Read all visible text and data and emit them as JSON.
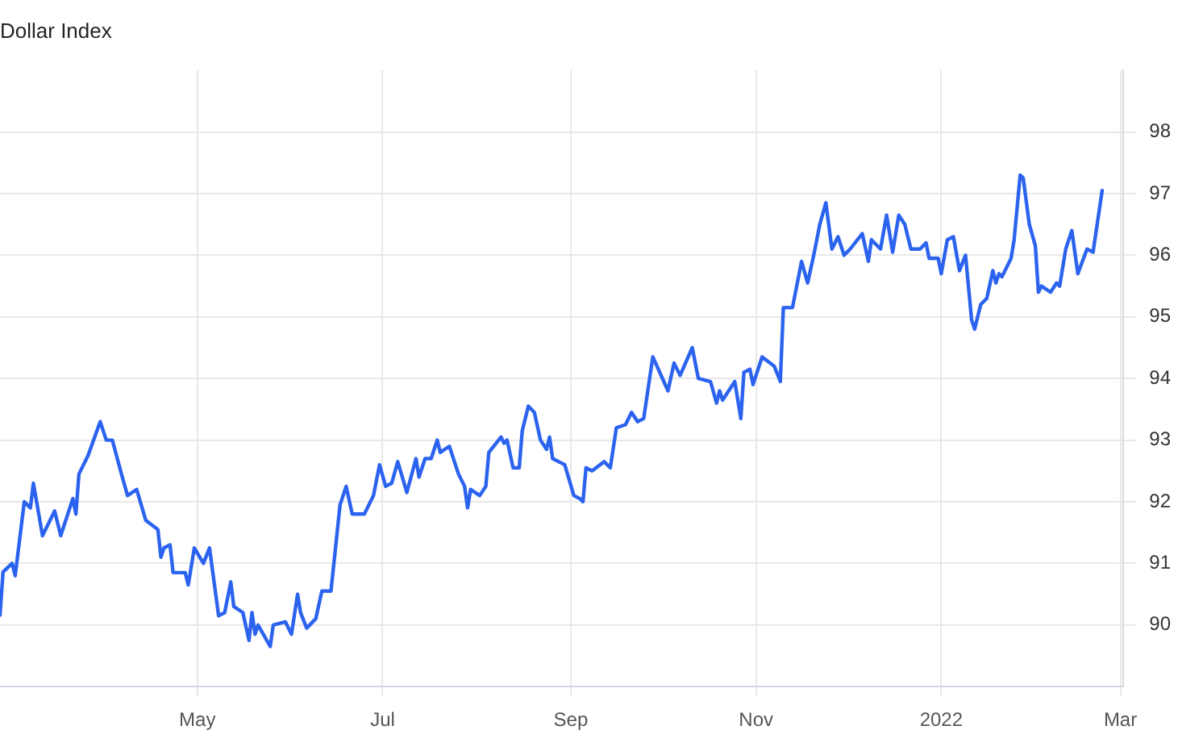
{
  "chart_data": {
    "type": "line",
    "title": "Dollar Index",
    "x": [
      "2021-02-25",
      "2021-02-26",
      "2021-03-01",
      "2021-03-02",
      "2021-03-05",
      "2021-03-07",
      "2021-03-08",
      "2021-03-11",
      "2021-03-15",
      "2021-03-17",
      "2021-03-21",
      "2021-03-22",
      "2021-03-23",
      "2021-03-26",
      "2021-03-30",
      "2021-04-01",
      "2021-04-03",
      "2021-04-06",
      "2021-04-08",
      "2021-04-11",
      "2021-04-14",
      "2021-04-18",
      "2021-04-19",
      "2021-04-20",
      "2021-04-22",
      "2021-04-23",
      "2021-04-27",
      "2021-04-28",
      "2021-04-30",
      "2021-05-03",
      "2021-05-05",
      "2021-05-08",
      "2021-05-10",
      "2021-05-12",
      "2021-05-13",
      "2021-05-16",
      "2021-05-18",
      "2021-05-19",
      "2021-05-20",
      "2021-05-21",
      "2021-05-25",
      "2021-05-26",
      "2021-05-30",
      "2021-06-01",
      "2021-06-03",
      "2021-06-04",
      "2021-06-06",
      "2021-06-09",
      "2021-06-11",
      "2021-06-14",
      "2021-06-17",
      "2021-06-19",
      "2021-06-21",
      "2021-06-25",
      "2021-06-28",
      "2021-06-30",
      "2021-07-02",
      "2021-07-04",
      "2021-07-06",
      "2021-07-09",
      "2021-07-12",
      "2021-07-13",
      "2021-07-15",
      "2021-07-17",
      "2021-07-19",
      "2021-07-20",
      "2021-07-23",
      "2021-07-26",
      "2021-07-28",
      "2021-07-29",
      "2021-07-30",
      "2021-08-02",
      "2021-08-04",
      "2021-08-05",
      "2021-08-09",
      "2021-08-10",
      "2021-08-11",
      "2021-08-13",
      "2021-08-15",
      "2021-08-16",
      "2021-08-18",
      "2021-08-20",
      "2021-08-22",
      "2021-08-24",
      "2021-08-25",
      "2021-08-26",
      "2021-08-30",
      "2021-09-02",
      "2021-09-04",
      "2021-09-05",
      "2021-09-06",
      "2021-09-08",
      "2021-09-12",
      "2021-09-14",
      "2021-09-16",
      "2021-09-19",
      "2021-09-21",
      "2021-09-23",
      "2021-09-25",
      "2021-09-28",
      "2021-10-03",
      "2021-10-05",
      "2021-10-07",
      "2021-10-11",
      "2021-10-13",
      "2021-10-17",
      "2021-10-19",
      "2021-10-20",
      "2021-10-21",
      "2021-10-25",
      "2021-10-27",
      "2021-10-28",
      "2021-10-30",
      "2021-10-31",
      "2021-11-03",
      "2021-11-07",
      "2021-11-09",
      "2021-11-10",
      "2021-11-13",
      "2021-11-16",
      "2021-11-18",
      "2021-11-20",
      "2021-11-22",
      "2021-11-24",
      "2021-11-26",
      "2021-11-28",
      "2021-11-30",
      "2021-12-02",
      "2021-12-06",
      "2021-12-08",
      "2021-12-09",
      "2021-12-12",
      "2021-12-14",
      "2021-12-16",
      "2021-12-18",
      "2021-12-20",
      "2021-12-22",
      "2021-12-25",
      "2021-12-27",
      "2021-12-28",
      "2021-12-31",
      "2022-01-01",
      "2022-01-03",
      "2022-01-05",
      "2022-01-07",
      "2022-01-09",
      "2022-01-11",
      "2022-01-12",
      "2022-01-14",
      "2022-01-16",
      "2022-01-18",
      "2022-01-19",
      "2022-01-20",
      "2022-01-21",
      "2022-01-24",
      "2022-01-25",
      "2022-01-27",
      "2022-01-28",
      "2022-01-30",
      "2022-02-01",
      "2022-02-02",
      "2022-02-03",
      "2022-02-06",
      "2022-02-08",
      "2022-02-09",
      "2022-02-11",
      "2022-02-13",
      "2022-02-15",
      "2022-02-18",
      "2022-02-20",
      "2022-02-23"
    ],
    "series": [
      {
        "color": "#2b63ef",
        "values": [
          90.16,
          90.86,
          91.0,
          90.8,
          92.0,
          91.9,
          92.3,
          91.45,
          91.85,
          91.45,
          92.05,
          91.8,
          92.45,
          92.75,
          93.3,
          93.0,
          93.0,
          92.45,
          92.1,
          92.2,
          91.7,
          91.55,
          91.1,
          91.25,
          91.3,
          90.85,
          90.85,
          90.65,
          91.25,
          91.0,
          91.25,
          90.15,
          90.2,
          90.7,
          90.3,
          90.2,
          89.75,
          90.2,
          89.85,
          90.0,
          89.65,
          90.0,
          90.05,
          89.85,
          90.5,
          90.2,
          89.95,
          90.1,
          90.55,
          90.55,
          91.95,
          92.25,
          91.8,
          91.8,
          92.1,
          92.6,
          92.25,
          92.3,
          92.65,
          92.15,
          92.7,
          92.4,
          92.7,
          92.7,
          93.0,
          92.8,
          92.9,
          92.45,
          92.25,
          91.9,
          92.2,
          92.1,
          92.25,
          92.8,
          93.05,
          92.95,
          93.0,
          92.55,
          92.55,
          93.15,
          93.55,
          93.45,
          93.0,
          92.85,
          93.05,
          92.7,
          92.6,
          92.1,
          92.05,
          92.0,
          92.55,
          92.5,
          92.65,
          92.55,
          93.2,
          93.25,
          93.45,
          93.3,
          93.35,
          94.35,
          93.8,
          94.25,
          94.05,
          94.5,
          94.0,
          93.95,
          93.6,
          93.8,
          93.65,
          93.95,
          93.35,
          94.1,
          94.15,
          93.9,
          94.35,
          94.2,
          93.95,
          95.15,
          95.15,
          95.9,
          95.55,
          96.0,
          96.5,
          96.85,
          96.1,
          96.3,
          96.0,
          96.1,
          96.35,
          95.9,
          96.25,
          96.1,
          96.65,
          96.05,
          96.65,
          96.5,
          96.1,
          96.1,
          96.2,
          95.95,
          95.95,
          95.7,
          96.25,
          96.3,
          95.75,
          96.0,
          94.95,
          94.8,
          95.2,
          95.3,
          95.75,
          95.55,
          95.7,
          95.65,
          95.95,
          96.25,
          97.3,
          97.25,
          96.5,
          96.15,
          95.4,
          95.5,
          95.4,
          95.55,
          95.5,
          96.1,
          96.4,
          95.7,
          96.1,
          96.05,
          97.05
        ]
      }
    ],
    "xlim": [
      "2021-02-25",
      "2022-03-02"
    ],
    "xticks": [
      {
        "value": "2021-05-01",
        "label": "May"
      },
      {
        "value": "2021-07-01",
        "label": "Jul"
      },
      {
        "value": "2021-09-01",
        "label": "Sep"
      },
      {
        "value": "2021-11-01",
        "label": "Nov"
      },
      {
        "value": "2022-01-01",
        "label": "2022"
      },
      {
        "value": "2022-03-01",
        "label": "Mar"
      }
    ],
    "ylim": [
      89,
      99
    ],
    "yticks": [
      90,
      91,
      92,
      93,
      94,
      95,
      96,
      97,
      98
    ],
    "grid": true,
    "legend": false,
    "marker": "none",
    "line_style": "solid"
  }
}
